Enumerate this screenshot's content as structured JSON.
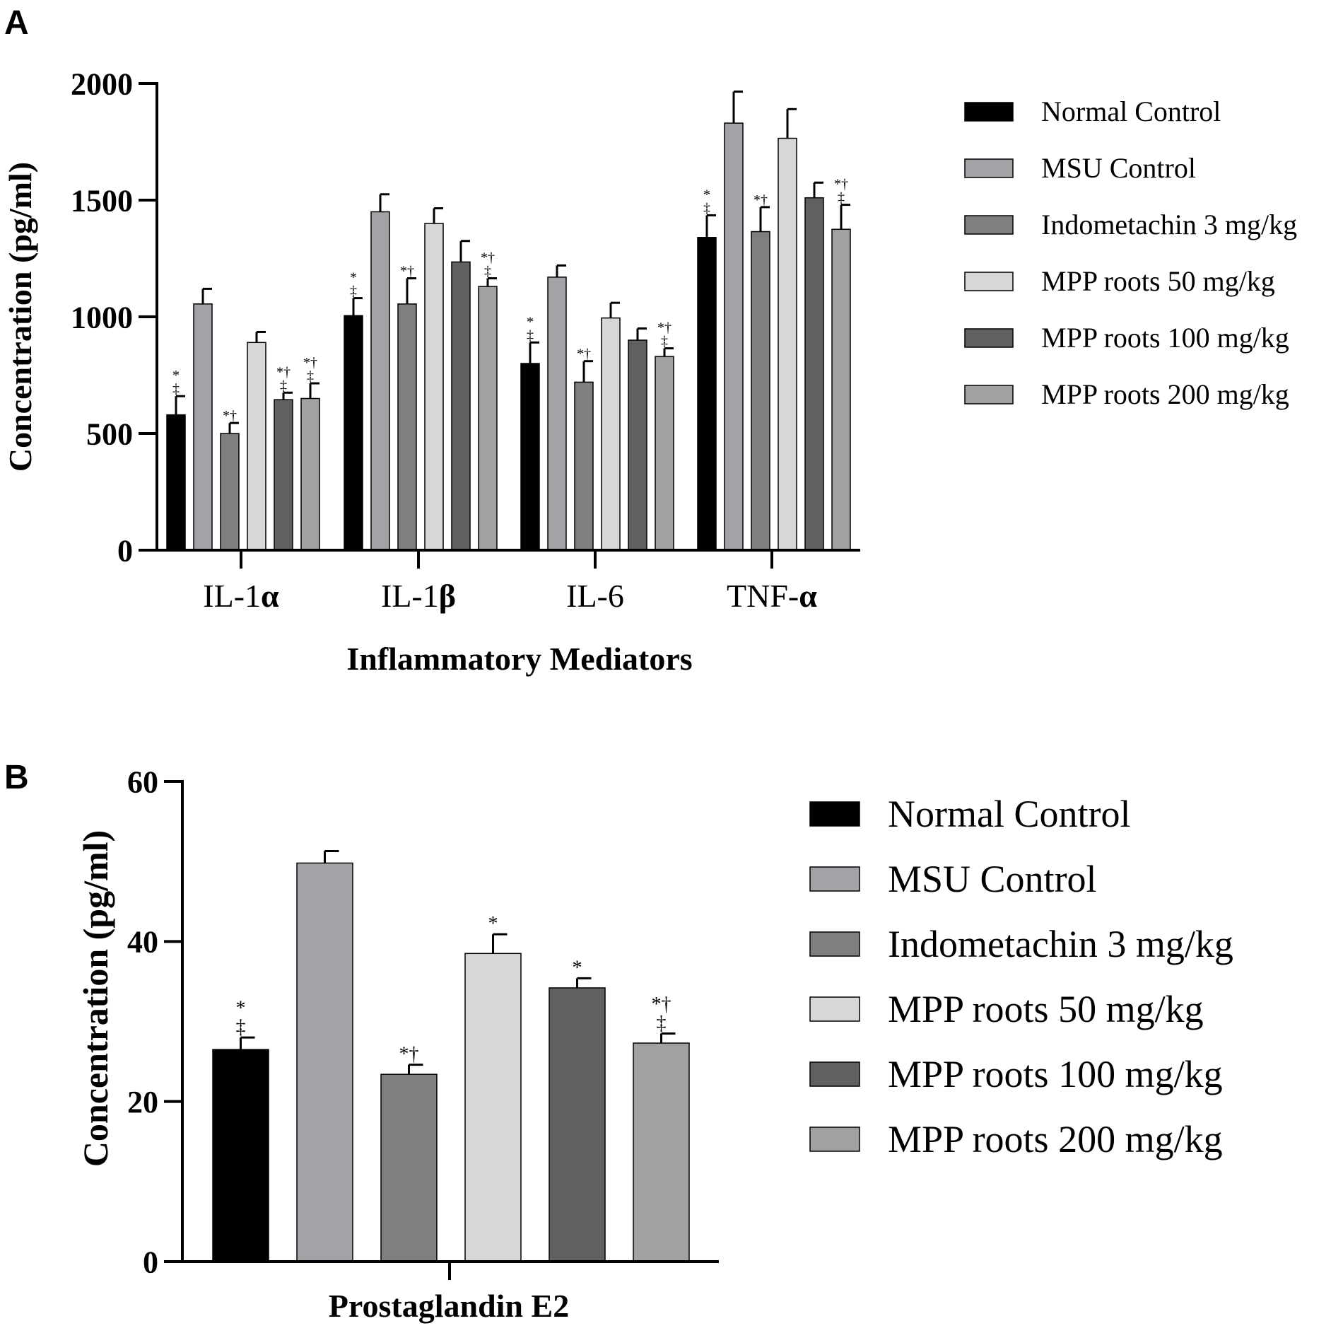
{
  "colors": {
    "Normal Control": "#000000",
    "MSU Control": "#a3a3a7",
    "Indometachin 3 mg/kg": "#7f7f7f",
    "MPP roots 50 mg/kg": "#d7d7d7",
    "MPP roots 100 mg/kg": "#606060",
    "MPP roots 200 mg/kg": "#a1a1a4"
  },
  "chart_data": [
    {
      "panel": "A",
      "type": "bar",
      "xlabel": "Inflammatory Mediators",
      "ylabel": "Concentration (pg/ml)",
      "ylim": [
        0,
        2000
      ],
      "yticks": [
        0,
        500,
        1000,
        1500,
        2000
      ],
      "categories": [
        {
          "prefix": "IL-1",
          "greek": "α"
        },
        {
          "prefix": "IL-1",
          "greek": "β"
        },
        {
          "prefix": "IL-6",
          "greek": ""
        },
        {
          "prefix": "TNF-",
          "greek": "α"
        }
      ],
      "series": [
        {
          "name": "Normal Control",
          "values": [
            580,
            1005,
            800,
            1340
          ],
          "errors": [
            80,
            75,
            90,
            95
          ],
          "annotations": [
            "*‡",
            "*‡",
            "*‡",
            "*‡"
          ]
        },
        {
          "name": "MSU Control",
          "values": [
            1055,
            1450,
            1170,
            1830
          ],
          "errors": [
            65,
            75,
            50,
            135
          ],
          "annotations": [
            "",
            "",
            "",
            ""
          ]
        },
        {
          "name": "Indometachin 3 mg/kg",
          "values": [
            500,
            1055,
            720,
            1365
          ],
          "errors": [
            45,
            110,
            90,
            105
          ],
          "annotations": [
            "*†",
            "*†",
            "*†",
            "*†"
          ]
        },
        {
          "name": "MPP roots 50 mg/kg",
          "values": [
            890,
            1400,
            995,
            1765
          ],
          "errors": [
            45,
            65,
            65,
            125
          ],
          "annotations": [
            "",
            "",
            "",
            ""
          ]
        },
        {
          "name": "MPP roots 100 mg/kg",
          "values": [
            645,
            1235,
            900,
            1510
          ],
          "errors": [
            30,
            90,
            50,
            65
          ],
          "annotations": [
            "*†‡",
            "",
            "",
            ""
          ]
        },
        {
          "name": "MPP roots 200 mg/kg",
          "values": [
            650,
            1130,
            830,
            1375
          ],
          "errors": [
            65,
            35,
            35,
            105
          ],
          "annotations": [
            "*†‡",
            "*†‡",
            "*†‡",
            "*†‡"
          ]
        }
      ]
    },
    {
      "panel": "B",
      "type": "bar",
      "xlabel": "Prostaglandin E2",
      "ylabel": "Concentration (pg/ml)",
      "ylim": [
        0,
        60
      ],
      "yticks": [
        0,
        20,
        40,
        60
      ],
      "categories": [
        "Prostaglandin E2"
      ],
      "series": [
        {
          "name": "Normal Control",
          "values": [
            26.5
          ],
          "errors": [
            1.5
          ],
          "annotations": [
            "*‡"
          ]
        },
        {
          "name": "MSU Control",
          "values": [
            49.8
          ],
          "errors": [
            1.5
          ],
          "annotations": [
            ""
          ]
        },
        {
          "name": "Indometachin 3 mg/kg",
          "values": [
            23.4
          ],
          "errors": [
            1.2
          ],
          "annotations": [
            "*†"
          ]
        },
        {
          "name": "MPP roots 50 mg/kg",
          "values": [
            38.5
          ],
          "errors": [
            2.4
          ],
          "annotations": [
            "*"
          ]
        },
        {
          "name": "MPP roots 100 mg/kg",
          "values": [
            34.2
          ],
          "errors": [
            1.2
          ],
          "annotations": [
            "*"
          ]
        },
        {
          "name": "MPP roots 200 mg/kg",
          "values": [
            27.3
          ],
          "errors": [
            1.2
          ],
          "annotations": [
            "*†‡"
          ]
        }
      ]
    }
  ]
}
